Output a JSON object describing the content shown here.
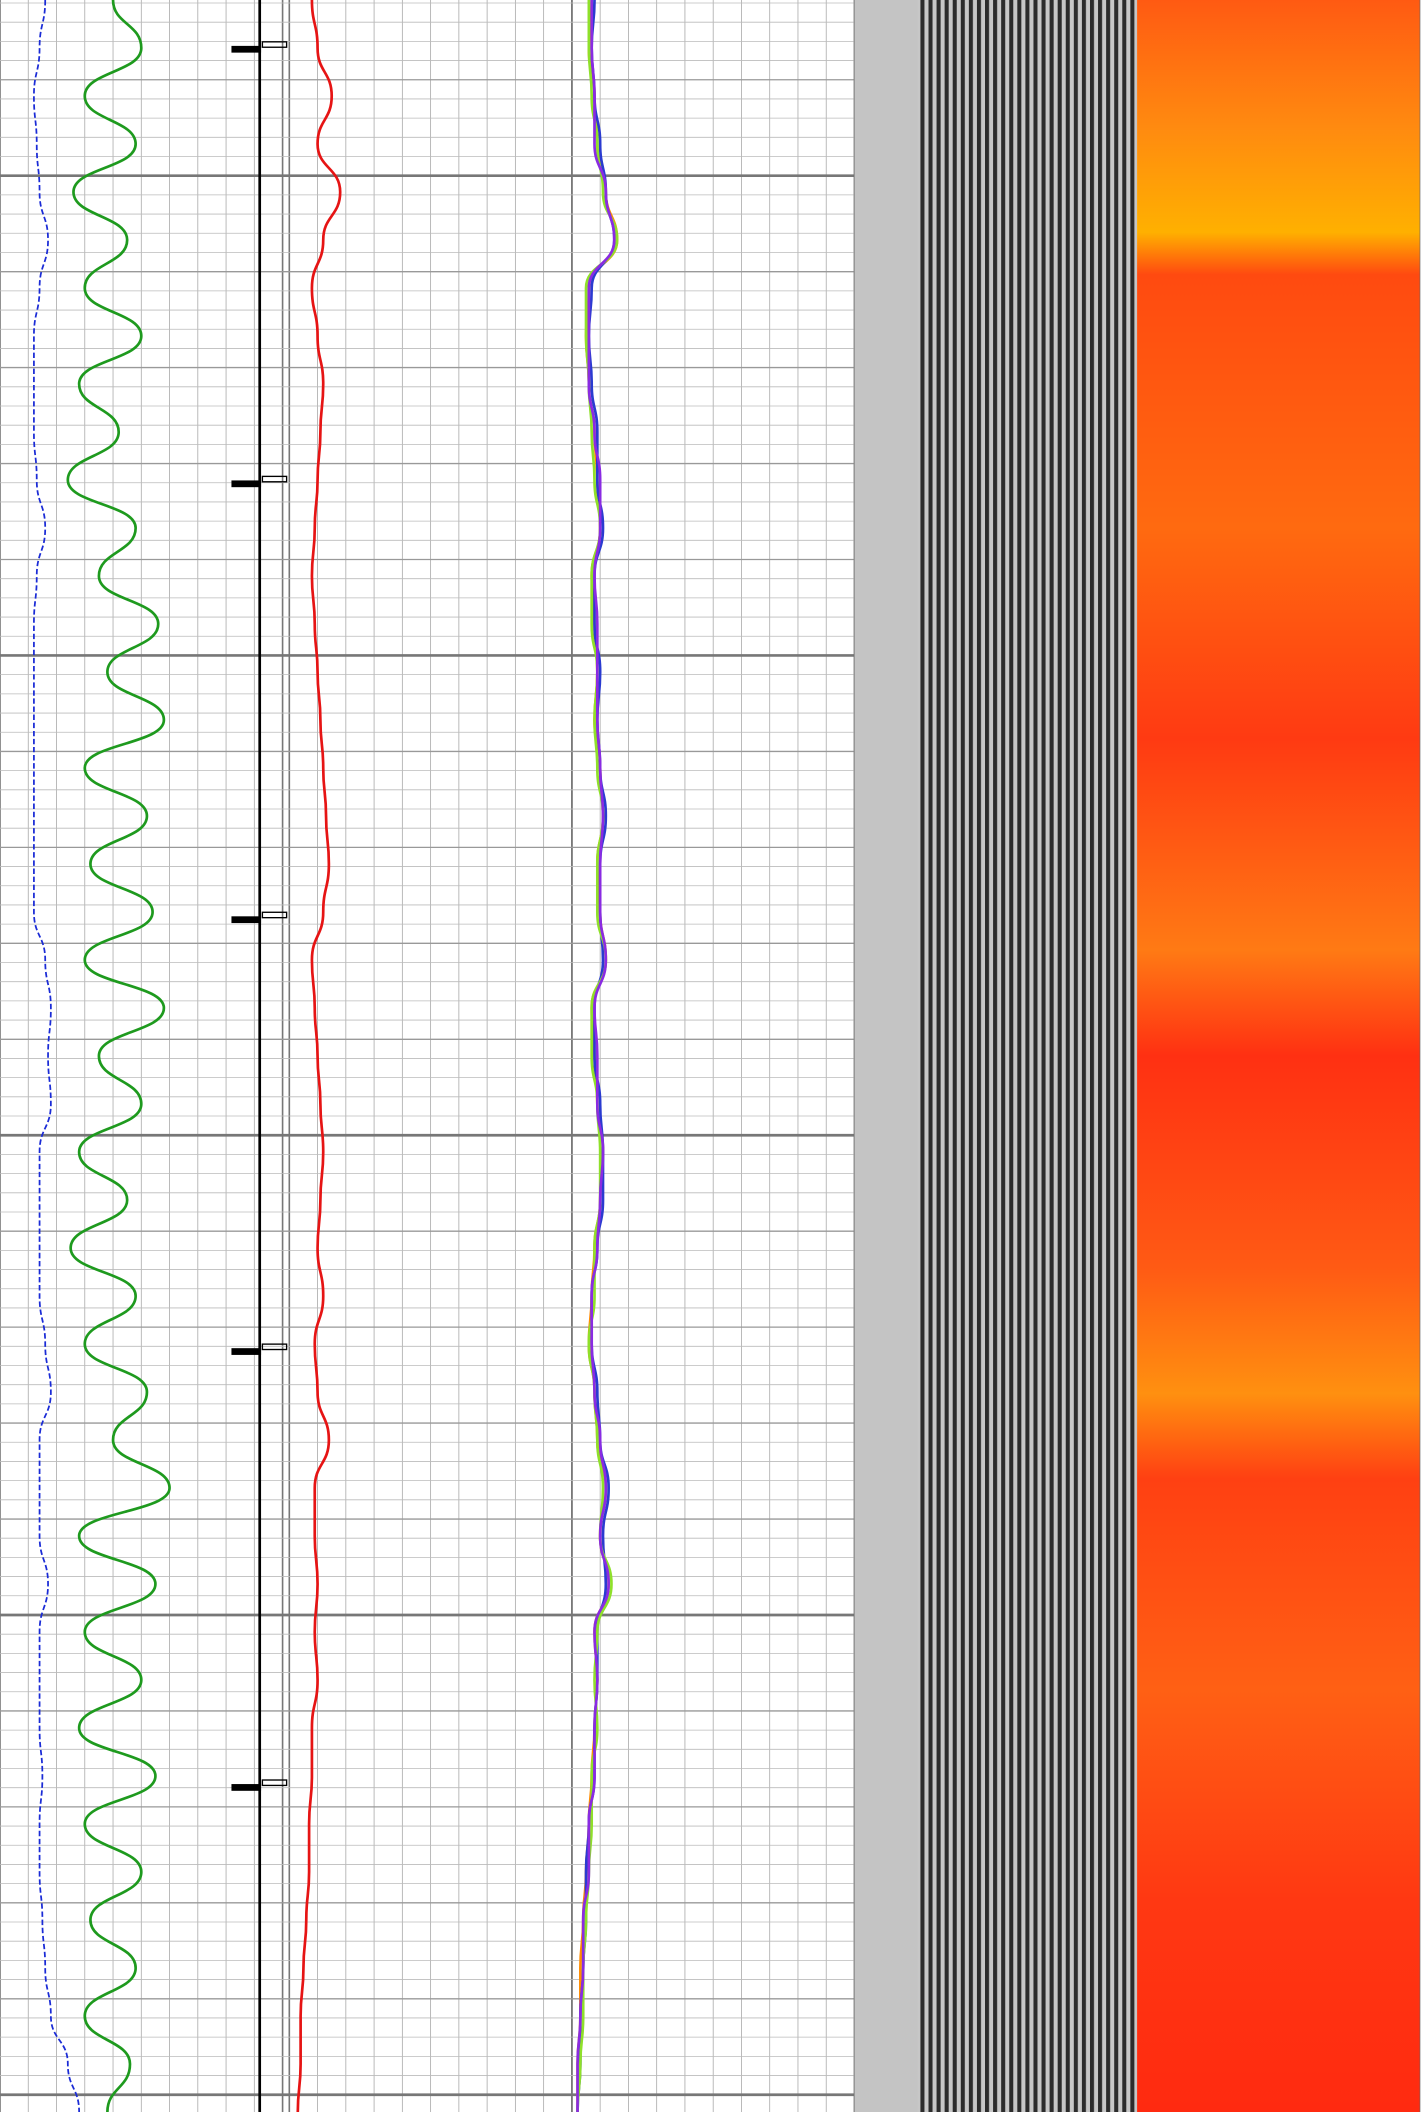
{
  "chart_data": {
    "type": "well-log",
    "series": [
      {
        "color": "#1a2bd6",
        "track": 0,
        "dashed": true,
        "values": [
          16,
          14,
          12,
          13,
          14,
          17,
          14,
          12,
          12,
          12,
          13,
          16,
          13,
          12,
          12,
          12,
          12,
          12,
          12,
          12,
          16,
          18,
          17,
          18,
          14,
          14,
          14,
          14,
          16,
          18,
          14,
          14,
          14,
          17,
          14,
          14,
          14,
          15,
          14,
          14,
          15,
          16,
          18,
          24,
          28
        ]
      },
      {
        "color": "#1e9a1e",
        "track": 0,
        "dashed": false,
        "values": [
          40,
          50,
          30,
          48,
          26,
          45,
          30,
          50,
          28,
          42,
          24,
          48,
          35,
          56,
          38,
          58,
          30,
          52,
          32,
          54,
          30,
          58,
          35,
          50,
          28,
          45,
          25,
          48,
          30,
          52,
          40,
          60,
          28,
          55,
          30,
          50,
          28,
          55,
          30,
          50,
          32,
          48,
          30,
          46,
          38
        ]
      },
      {
        "color": "#e61414",
        "track": 1,
        "dashed": false,
        "values": [
          8,
          10,
          15,
          10,
          18,
          12,
          8,
          10,
          12,
          11,
          10,
          9,
          8,
          9,
          10,
          11,
          12,
          13,
          14,
          12,
          8,
          9,
          10,
          11,
          12,
          11,
          10,
          12,
          9,
          10,
          14,
          9,
          9,
          10,
          9,
          10,
          8,
          8,
          7,
          7,
          6,
          5,
          4,
          4,
          3
        ]
      },
      {
        "color": "#ff8c00",
        "track": 2,
        "dashed": false,
        "values": [
          7,
          6,
          8,
          9,
          12,
          16,
          6,
          5,
          6,
          8,
          9,
          10,
          7,
          8,
          9,
          8,
          10,
          11,
          9,
          10,
          12,
          7,
          8,
          9,
          11,
          10,
          8,
          7,
          6,
          8,
          9,
          12,
          10,
          13,
          8,
          9,
          8,
          7,
          6,
          5,
          4,
          3,
          3,
          2,
          2
        ]
      },
      {
        "color": "#2a3bd0",
        "track": 2,
        "dashed": false,
        "values": [
          8,
          7,
          8,
          10,
          12,
          15,
          7,
          6,
          7,
          9,
          9,
          11,
          8,
          8,
          10,
          9,
          10,
          12,
          10,
          10,
          11,
          8,
          8,
          10,
          11,
          11,
          9,
          7,
          7,
          9,
          10,
          13,
          11,
          12,
          9,
          9,
          8,
          8,
          6,
          5,
          5,
          4,
          3,
          3,
          2
        ]
      },
      {
        "color": "#8fe02a",
        "track": 2,
        "dashed": false,
        "values": [
          6,
          6,
          7,
          9,
          11,
          16,
          5,
          5,
          6,
          7,
          8,
          10,
          7,
          7,
          9,
          8,
          9,
          11,
          9,
          9,
          12,
          7,
          7,
          9,
          10,
          10,
          8,
          8,
          6,
          8,
          9,
          11,
          10,
          14,
          9,
          8,
          9,
          7,
          7,
          6,
          5,
          4,
          4,
          3,
          2
        ]
      },
      {
        "color": "#8a2be2",
        "track": 2,
        "dashed": false,
        "values": [
          7,
          7,
          8,
          8,
          12,
          15,
          6,
          6,
          6,
          8,
          10,
          10,
          8,
          9,
          9,
          9,
          10,
          11,
          10,
          10,
          12,
          8,
          9,
          9,
          11,
          10,
          9,
          7,
          7,
          8,
          10,
          12,
          10,
          13,
          8,
          9,
          8,
          8,
          6,
          6,
          4,
          4,
          3,
          2,
          2
        ]
      }
    ]
  }
}
